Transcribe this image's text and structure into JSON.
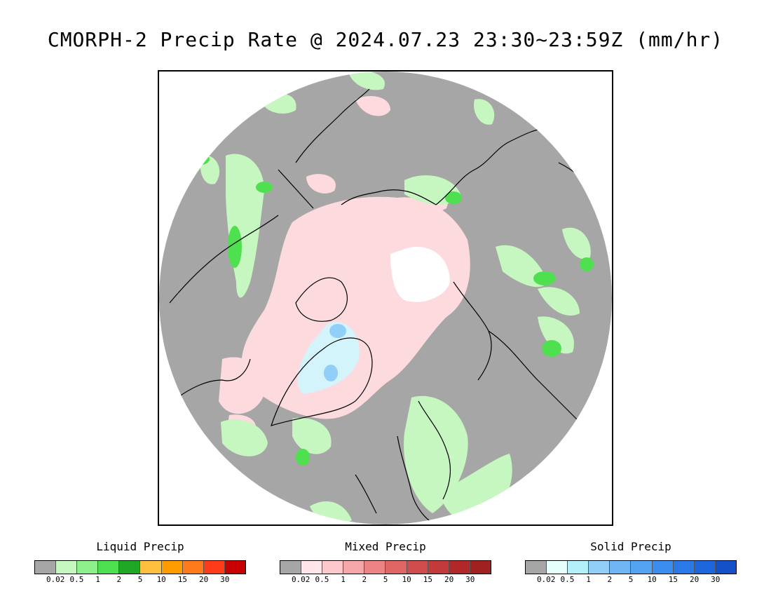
{
  "title": "CMORPH-2 Precip Rate @ 2024.07.23 23:30~23:59Z (mm/hr)",
  "colors": {
    "no_precip": "#a6a6a6",
    "no_data": "#ffffff",
    "coast": "#000000"
  },
  "legends": [
    {
      "id": "liquid",
      "title": "Liquid Precip",
      "colors": [
        "#a6a6a6",
        "#c6f7c0",
        "#8ef08a",
        "#4fe04f",
        "#1fa823",
        "#ffc040",
        "#ff9d00",
        "#ff7a1a",
        "#ff3b1a",
        "#c80000"
      ],
      "ticks": [
        "0.02",
        "0.5",
        "1",
        "2",
        "5",
        "10",
        "15",
        "20",
        "30"
      ]
    },
    {
      "id": "mixed",
      "title": "Mixed Precip",
      "colors": [
        "#a6a6a6",
        "#ffe6e9",
        "#fcc8cc",
        "#f4a6a8",
        "#ec8486",
        "#e06565",
        "#d04b4b",
        "#c23a3a",
        "#b02828",
        "#a12020"
      ],
      "ticks": [
        "0.02",
        "0.5",
        "1",
        "2",
        "5",
        "10",
        "15",
        "20",
        "30"
      ]
    },
    {
      "id": "solid",
      "title": "Solid Precip",
      "colors": [
        "#a6a6a6",
        "#e6fffd",
        "#b4f0fa",
        "#92cff8",
        "#70b6f5",
        "#54a2f2",
        "#3c8df0",
        "#2b79e8",
        "#1e66dc",
        "#1450c8"
      ],
      "ticks": [
        "0.02",
        "0.5",
        "1",
        "2",
        "5",
        "10",
        "15",
        "20",
        "30"
      ]
    }
  ]
}
